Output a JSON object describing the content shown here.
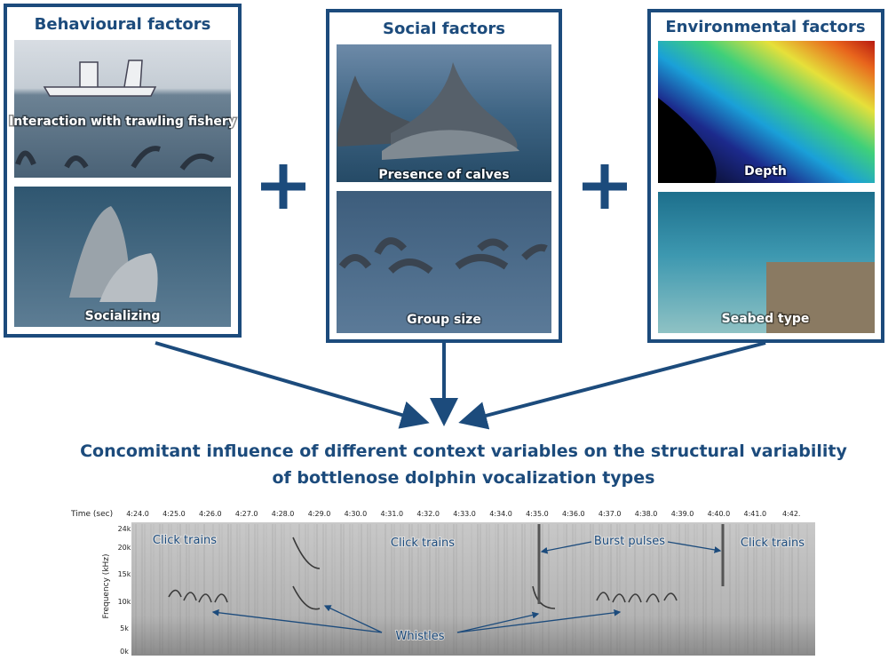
{
  "panels": [
    {
      "title": "Behavioural factors",
      "images": [
        {
          "caption": "Interaction with trawling fishery"
        },
        {
          "caption": "Socializing"
        }
      ]
    },
    {
      "title": "Social factors",
      "images": [
        {
          "caption": "Presence of calves"
        },
        {
          "caption": "Group size"
        }
      ]
    },
    {
      "title": "Environmental factors",
      "images": [
        {
          "caption": "Depth"
        },
        {
          "caption": "Seabed type"
        }
      ]
    }
  ],
  "conclusion": {
    "lines": [
      "Concomitant influence of different context variables on the structural variability",
      "of bottlenose dolphin vocalization types"
    ]
  },
  "spectrogram": {
    "x_axis_label": "Time (sec)",
    "time_labels": [
      "4:24.0",
      "4:25.0",
      "4:26.0",
      "4:27.0",
      "4:28.0",
      "4:29.0",
      "4:30.0",
      "4:31.0",
      "4:32.0",
      "4:33.0",
      "4:34.0",
      "4:35.0",
      "4:36.0",
      "4:37.0",
      "4:38.0",
      "4:39.0",
      "4:40.0",
      "4:41.0",
      "4:42."
    ],
    "y_axis_label": "Frequency (kHz)",
    "frequency_labels": [
      "24k",
      "20k",
      "15k",
      "10k",
      "5k",
      "0k"
    ],
    "annotations": [
      "Click trains",
      "Click trains",
      "Burst pulses",
      "Click trains",
      "Whistles"
    ]
  }
}
